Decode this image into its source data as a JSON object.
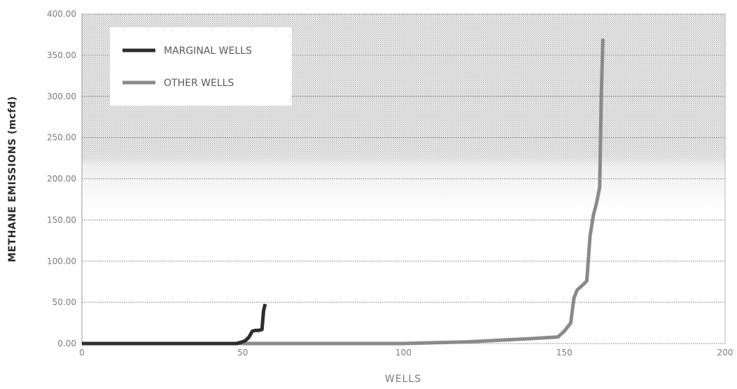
{
  "chart_data": {
    "type": "line",
    "xlabel": "WELLS",
    "ylabel": "METHANE EMISSIONS (mcfd)",
    "xlim": [
      0,
      200
    ],
    "ylim": [
      0,
      400
    ],
    "x_ticks": [
      "0",
      "50",
      "100",
      "150",
      "200"
    ],
    "y_ticks": [
      "0.00",
      "50.00",
      "100.00",
      "150.00",
      "200.00",
      "250.00",
      "300.00",
      "350.00",
      "400.00"
    ],
    "grid": true,
    "legend_position": "top-left",
    "series": [
      {
        "name": "MARGINAL WELLS",
        "color": "#2e2e2e",
        "x": [
          0,
          10,
          20,
          30,
          40,
          48,
          50,
          51,
          52,
          53,
          54,
          55,
          56,
          56.5,
          57
        ],
        "y": [
          0,
          0,
          0,
          0,
          0,
          0,
          2,
          4,
          8,
          15,
          16,
          16,
          17,
          40,
          48
        ]
      },
      {
        "name": "OTHER WELLS",
        "color": "#8a8a8a",
        "x": [
          0,
          25,
          50,
          75,
          100,
          110,
          120,
          130,
          140,
          148,
          150,
          152,
          153,
          154,
          156,
          157,
          158,
          159,
          160,
          161,
          161.5,
          162
        ],
        "y": [
          0,
          0,
          0,
          0,
          0,
          1,
          2,
          4,
          6,
          8,
          15,
          25,
          55,
          65,
          72,
          76,
          130,
          155,
          170,
          190,
          300,
          370
        ]
      }
    ]
  }
}
